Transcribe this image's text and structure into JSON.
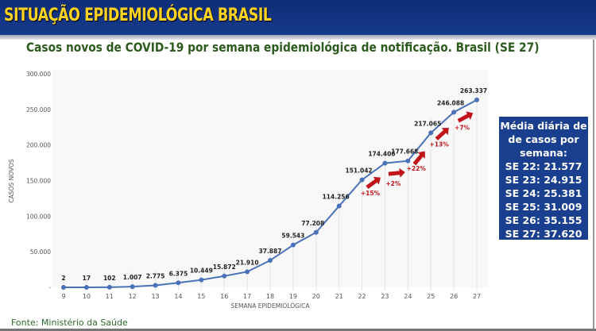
{
  "header": {
    "title": "SITUAÇÃO EPIDEMIOLÓGICA BRASIL"
  },
  "chart_data": {
    "type": "line",
    "title": "Casos novos de COVID-19 por semana epidemiológica de notificação. Brasil (SE 27)",
    "xlabel": "SEMANA EPIDEMIOLÓGICA",
    "ylabel": "CASOS NOVOS",
    "x": [
      9,
      10,
      11,
      12,
      13,
      14,
      15,
      16,
      17,
      18,
      19,
      20,
      21,
      22,
      23,
      24,
      25,
      26,
      27
    ],
    "values": [
      2,
      17,
      102,
      1007,
      2775,
      6375,
      10449,
      15872,
      21910,
      37887,
      59543,
      77208,
      114256,
      151042,
      174406,
      177668,
      217065,
      246088,
      263337
    ],
    "labels": [
      "2",
      "17",
      "102",
      "1.007",
      "2.775",
      "6.375",
      "10.449",
      "15.872",
      "21.910",
      "37.887",
      "59.543",
      "77.208",
      "114.256",
      "151.042",
      "174.406",
      "177.668",
      "217.065",
      "246.088",
      "263.337"
    ],
    "ylim": [
      0,
      300000
    ],
    "yticks": [
      0,
      50000,
      100000,
      150000,
      200000,
      250000,
      300000
    ],
    "ytick_labels": [
      "-",
      "50.000",
      "100.000",
      "150.000",
      "200.000",
      "250.000",
      "300.000"
    ],
    "grid": "vertical",
    "line_color": "#4a72b8",
    "annotations": [
      {
        "from": 22,
        "to": 23,
        "text": "+15%"
      },
      {
        "from": 23,
        "to": 24,
        "text": "+2%"
      },
      {
        "from": 24,
        "to": 25,
        "text": "+22%"
      },
      {
        "from": 25,
        "to": 26,
        "text": "+13%"
      },
      {
        "from": 26,
        "to": 27,
        "text": "+7%"
      }
    ],
    "annotation_color": "#c0141a"
  },
  "infobox": {
    "lines": [
      "Média diária de",
      "de casos por",
      "semana:",
      "SE 22: 21.577",
      "SE 23: 24.915",
      "SE 24: 25.381",
      "SE 25: 31.009",
      "SE 26: 35.155",
      "SE 27: 37.620"
    ]
  },
  "source": "Fonte: Ministério da Saúde"
}
